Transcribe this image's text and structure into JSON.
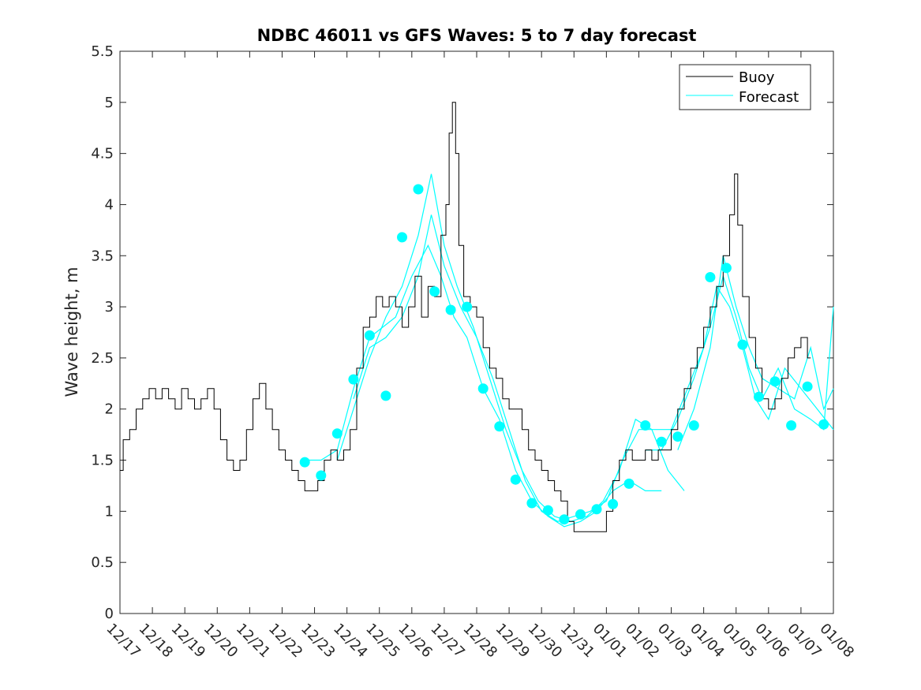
{
  "chart_data": {
    "type": "line",
    "title": "NDBC 46011 vs GFS Waves: 5 to 7 day forecast",
    "xlabel": "",
    "ylabel": "Wave height, m",
    "xlim": [
      0,
      22
    ],
    "ylim": [
      0,
      5.5
    ],
    "grid": false,
    "legend_position": "top-right",
    "x_tick_labels": [
      "12/17",
      "12/18",
      "12/19",
      "12/20",
      "12/21",
      "12/22",
      "12/23",
      "12/24",
      "12/25",
      "12/26",
      "12/27",
      "12/28",
      "12/29",
      "12/30",
      "12/31",
      "01/01",
      "01/02",
      "01/03",
      "01/04",
      "01/05",
      "01/06",
      "01/07",
      "01/08"
    ],
    "y_ticks": [
      0,
      0.5,
      1,
      1.5,
      2,
      2.5,
      3,
      3.5,
      4,
      4.5,
      5,
      5.5
    ],
    "y_tick_labels": [
      "0",
      "0.5",
      "1",
      "1.5",
      "2",
      "2.5",
      "3",
      "3.5",
      "4",
      "4.5",
      "5",
      "5.5"
    ],
    "x_units": "days since 12/17",
    "series": [
      {
        "name": "Buoy",
        "color": "#000000",
        "points": [
          [
            0,
            1.4
          ],
          [
            0.2,
            1.7
          ],
          [
            0.4,
            1.8
          ],
          [
            0.6,
            2.0
          ],
          [
            0.8,
            2.1
          ],
          [
            1.0,
            2.2
          ],
          [
            1.2,
            2.1
          ],
          [
            1.4,
            2.2
          ],
          [
            1.6,
            2.1
          ],
          [
            1.8,
            2.0
          ],
          [
            2.0,
            2.2
          ],
          [
            2.2,
            2.1
          ],
          [
            2.4,
            2.0
          ],
          [
            2.6,
            2.1
          ],
          [
            2.8,
            2.2
          ],
          [
            3.0,
            2.0
          ],
          [
            3.2,
            1.7
          ],
          [
            3.4,
            1.5
          ],
          [
            3.6,
            1.4
          ],
          [
            3.8,
            1.5
          ],
          [
            4.0,
            1.8
          ],
          [
            4.2,
            2.1
          ],
          [
            4.4,
            2.25
          ],
          [
            4.6,
            2.0
          ],
          [
            4.8,
            1.8
          ],
          [
            5.0,
            1.6
          ],
          [
            5.2,
            1.5
          ],
          [
            5.4,
            1.4
          ],
          [
            5.6,
            1.3
          ],
          [
            5.8,
            1.2
          ],
          [
            6.0,
            1.2
          ],
          [
            6.2,
            1.3
          ],
          [
            6.4,
            1.5
          ],
          [
            6.6,
            1.6
          ],
          [
            6.8,
            1.5
          ],
          [
            7.0,
            1.6
          ],
          [
            7.2,
            1.8
          ],
          [
            7.4,
            2.4
          ],
          [
            7.6,
            2.8
          ],
          [
            7.8,
            2.9
          ],
          [
            8.0,
            3.1
          ],
          [
            8.2,
            3.0
          ],
          [
            8.4,
            3.1
          ],
          [
            8.6,
            3.0
          ],
          [
            8.8,
            2.8
          ],
          [
            9.0,
            3.0
          ],
          [
            9.2,
            3.3
          ],
          [
            9.4,
            2.9
          ],
          [
            9.6,
            3.2
          ],
          [
            9.8,
            3.1
          ],
          [
            10.0,
            3.7
          ],
          [
            10.1,
            4.0
          ],
          [
            10.2,
            4.7
          ],
          [
            10.3,
            5.0
          ],
          [
            10.4,
            4.5
          ],
          [
            10.5,
            3.6
          ],
          [
            10.7,
            3.1
          ],
          [
            10.9,
            3.0
          ],
          [
            11.1,
            2.9
          ],
          [
            11.3,
            2.6
          ],
          [
            11.5,
            2.4
          ],
          [
            11.7,
            2.3
          ],
          [
            11.9,
            2.1
          ],
          [
            12.1,
            2.0
          ],
          [
            12.3,
            2.0
          ],
          [
            12.5,
            1.8
          ],
          [
            12.7,
            1.6
          ],
          [
            12.9,
            1.5
          ],
          [
            13.1,
            1.4
          ],
          [
            13.3,
            1.3
          ],
          [
            13.5,
            1.2
          ],
          [
            13.7,
            1.1
          ],
          [
            13.9,
            0.9
          ],
          [
            14.1,
            0.8
          ],
          [
            14.3,
            0.8
          ],
          [
            14.5,
            0.8
          ],
          [
            14.7,
            0.8
          ],
          [
            14.9,
            0.8
          ],
          [
            15.1,
            1.0
          ],
          [
            15.3,
            1.3
          ],
          [
            15.5,
            1.5
          ],
          [
            15.7,
            1.6
          ],
          [
            15.9,
            1.5
          ],
          [
            16.1,
            1.5
          ],
          [
            16.3,
            1.6
          ],
          [
            16.5,
            1.5
          ],
          [
            16.7,
            1.6
          ],
          [
            16.9,
            1.6
          ],
          [
            17.1,
            1.8
          ],
          [
            17.3,
            2.0
          ],
          [
            17.5,
            2.2
          ],
          [
            17.7,
            2.4
          ],
          [
            17.9,
            2.6
          ],
          [
            18.1,
            2.8
          ],
          [
            18.3,
            3.0
          ],
          [
            18.5,
            3.2
          ],
          [
            18.7,
            3.5
          ],
          [
            18.9,
            3.9
          ],
          [
            19.0,
            4.3
          ],
          [
            19.1,
            3.8
          ],
          [
            19.3,
            3.1
          ],
          [
            19.5,
            2.7
          ],
          [
            19.7,
            2.4
          ],
          [
            19.9,
            2.1
          ],
          [
            20.1,
            2.0
          ],
          [
            20.3,
            2.1
          ],
          [
            20.5,
            2.3
          ],
          [
            20.7,
            2.5
          ],
          [
            20.9,
            2.6
          ],
          [
            21.1,
            2.7
          ],
          [
            21.3,
            2.5
          ]
        ]
      },
      {
        "name": "Forecast",
        "color": "#00ffff",
        "runs": [
          [
            [
              5.7,
              1.5
            ],
            [
              6.2,
              1.5
            ],
            [
              6.7,
              1.6
            ],
            [
              7.2,
              2.2
            ],
            [
              7.7,
              2.7
            ],
            [
              8.1,
              2.8
            ],
            [
              8.5,
              2.9
            ],
            [
              9.0,
              3.3
            ],
            [
              9.5,
              3.6
            ],
            [
              9.9,
              3.3
            ],
            [
              10.3,
              2.9
            ],
            [
              10.7,
              2.7
            ],
            [
              11.2,
              2.2
            ],
            [
              11.7,
              1.9
            ],
            [
              12.2,
              1.4
            ],
            [
              12.7,
              1.1
            ],
            [
              13.2,
              0.95
            ],
            [
              13.7,
              0.85
            ],
            [
              14.2,
              0.9
            ],
            [
              14.7,
              1.0
            ],
            [
              15.2,
              1.2
            ],
            [
              15.7,
              1.3
            ],
            [
              16.2,
              1.2
            ],
            [
              16.7,
              1.2
            ]
          ],
          [
            [
              6.7,
              1.5
            ],
            [
              7.2,
              2.0
            ],
            [
              7.7,
              2.5
            ],
            [
              8.2,
              2.9
            ],
            [
              8.7,
              3.2
            ],
            [
              9.2,
              3.7
            ],
            [
              9.6,
              4.3
            ],
            [
              10.0,
              3.6
            ],
            [
              10.4,
              3.2
            ],
            [
              10.9,
              2.8
            ],
            [
              11.4,
              2.3
            ],
            [
              11.9,
              1.8
            ],
            [
              12.4,
              1.4
            ],
            [
              12.9,
              1.1
            ],
            [
              13.4,
              0.95
            ],
            [
              13.9,
              0.9
            ],
            [
              14.4,
              0.95
            ],
            [
              14.9,
              1.1
            ],
            [
              15.4,
              1.4
            ],
            [
              15.9,
              1.9
            ],
            [
              16.4,
              1.8
            ],
            [
              16.9,
              1.4
            ],
            [
              17.4,
              1.2
            ]
          ],
          [
            [
              7.2,
              2.1
            ],
            [
              7.7,
              2.6
            ],
            [
              8.2,
              2.7
            ],
            [
              8.7,
              2.9
            ],
            [
              9.2,
              3.3
            ],
            [
              9.6,
              3.9
            ],
            [
              10.0,
              3.4
            ],
            [
              10.5,
              3.0
            ],
            [
              11.0,
              2.7
            ],
            [
              11.5,
              2.3
            ],
            [
              12.0,
              1.8
            ],
            [
              12.5,
              1.3
            ],
            [
              13.0,
              1.0
            ],
            [
              13.5,
              0.9
            ],
            [
              14.0,
              0.95
            ],
            [
              14.5,
              1.0
            ],
            [
              15.0,
              1.1
            ],
            [
              15.5,
              1.5
            ],
            [
              16.0,
              1.8
            ],
            [
              16.5,
              1.8
            ],
            [
              17.0,
              1.8
            ],
            [
              17.5,
              2.2
            ],
            [
              18.0,
              2.6
            ],
            [
              18.4,
              3.2
            ],
            [
              18.8,
              3.0
            ],
            [
              19.2,
              2.6
            ],
            [
              19.6,
              2.1
            ],
            [
              20.0,
              1.9
            ],
            [
              20.5,
              2.4
            ],
            [
              21.0,
              2.2
            ],
            [
              21.5,
              2.0
            ],
            [
              22.0,
              1.8
            ]
          ],
          [
            [
              16.2,
              1.6
            ],
            [
              16.7,
              1.6
            ],
            [
              17.2,
              1.9
            ],
            [
              17.7,
              2.3
            ],
            [
              18.2,
              2.8
            ],
            [
              18.6,
              3.3
            ],
            [
              19.0,
              2.9
            ],
            [
              19.4,
              2.4
            ],
            [
              19.8,
              2.1
            ],
            [
              20.3,
              2.4
            ],
            [
              20.8,
              2.0
            ],
            [
              21.3,
              1.9
            ],
            [
              21.7,
              1.8
            ],
            [
              22.0,
              3.0
            ]
          ],
          [
            [
              17.2,
              1.6
            ],
            [
              17.7,
              2.0
            ],
            [
              18.2,
              2.6
            ],
            [
              18.6,
              3.5
            ],
            [
              19.0,
              3.0
            ],
            [
              19.4,
              2.6
            ],
            [
              19.8,
              2.3
            ],
            [
              20.3,
              2.2
            ],
            [
              20.8,
              2.1
            ],
            [
              21.3,
              2.6
            ],
            [
              21.7,
              2.0
            ],
            [
              22.0,
              2.2
            ]
          ]
        ]
      }
    ],
    "forecast_markers": {
      "color": "#00ffff",
      "points": [
        [
          5.7,
          1.48
        ],
        [
          6.2,
          1.35
        ],
        [
          6.7,
          1.76
        ],
        [
          7.2,
          2.29
        ],
        [
          7.7,
          2.72
        ],
        [
          8.2,
          2.13
        ],
        [
          8.7,
          3.68
        ],
        [
          9.2,
          4.15
        ],
        [
          9.7,
          3.15
        ],
        [
          10.2,
          2.97
        ],
        [
          10.7,
          3.0
        ],
        [
          11.2,
          2.2
        ],
        [
          11.7,
          1.83
        ],
        [
          12.2,
          1.31
        ],
        [
          12.7,
          1.08
        ],
        [
          13.2,
          1.01
        ],
        [
          13.7,
          0.92
        ],
        [
          14.2,
          0.97
        ],
        [
          14.7,
          1.02
        ],
        [
          15.2,
          1.07
        ],
        [
          15.7,
          1.27
        ],
        [
          16.2,
          1.84
        ],
        [
          16.7,
          1.68
        ],
        [
          17.2,
          1.73
        ],
        [
          17.7,
          1.84
        ],
        [
          18.2,
          3.29
        ],
        [
          18.7,
          3.38
        ],
        [
          19.2,
          2.63
        ],
        [
          19.7,
          2.12
        ],
        [
          20.2,
          2.27
        ],
        [
          20.7,
          1.84
        ],
        [
          21.2,
          2.22
        ],
        [
          21.7,
          1.85
        ]
      ]
    }
  }
}
